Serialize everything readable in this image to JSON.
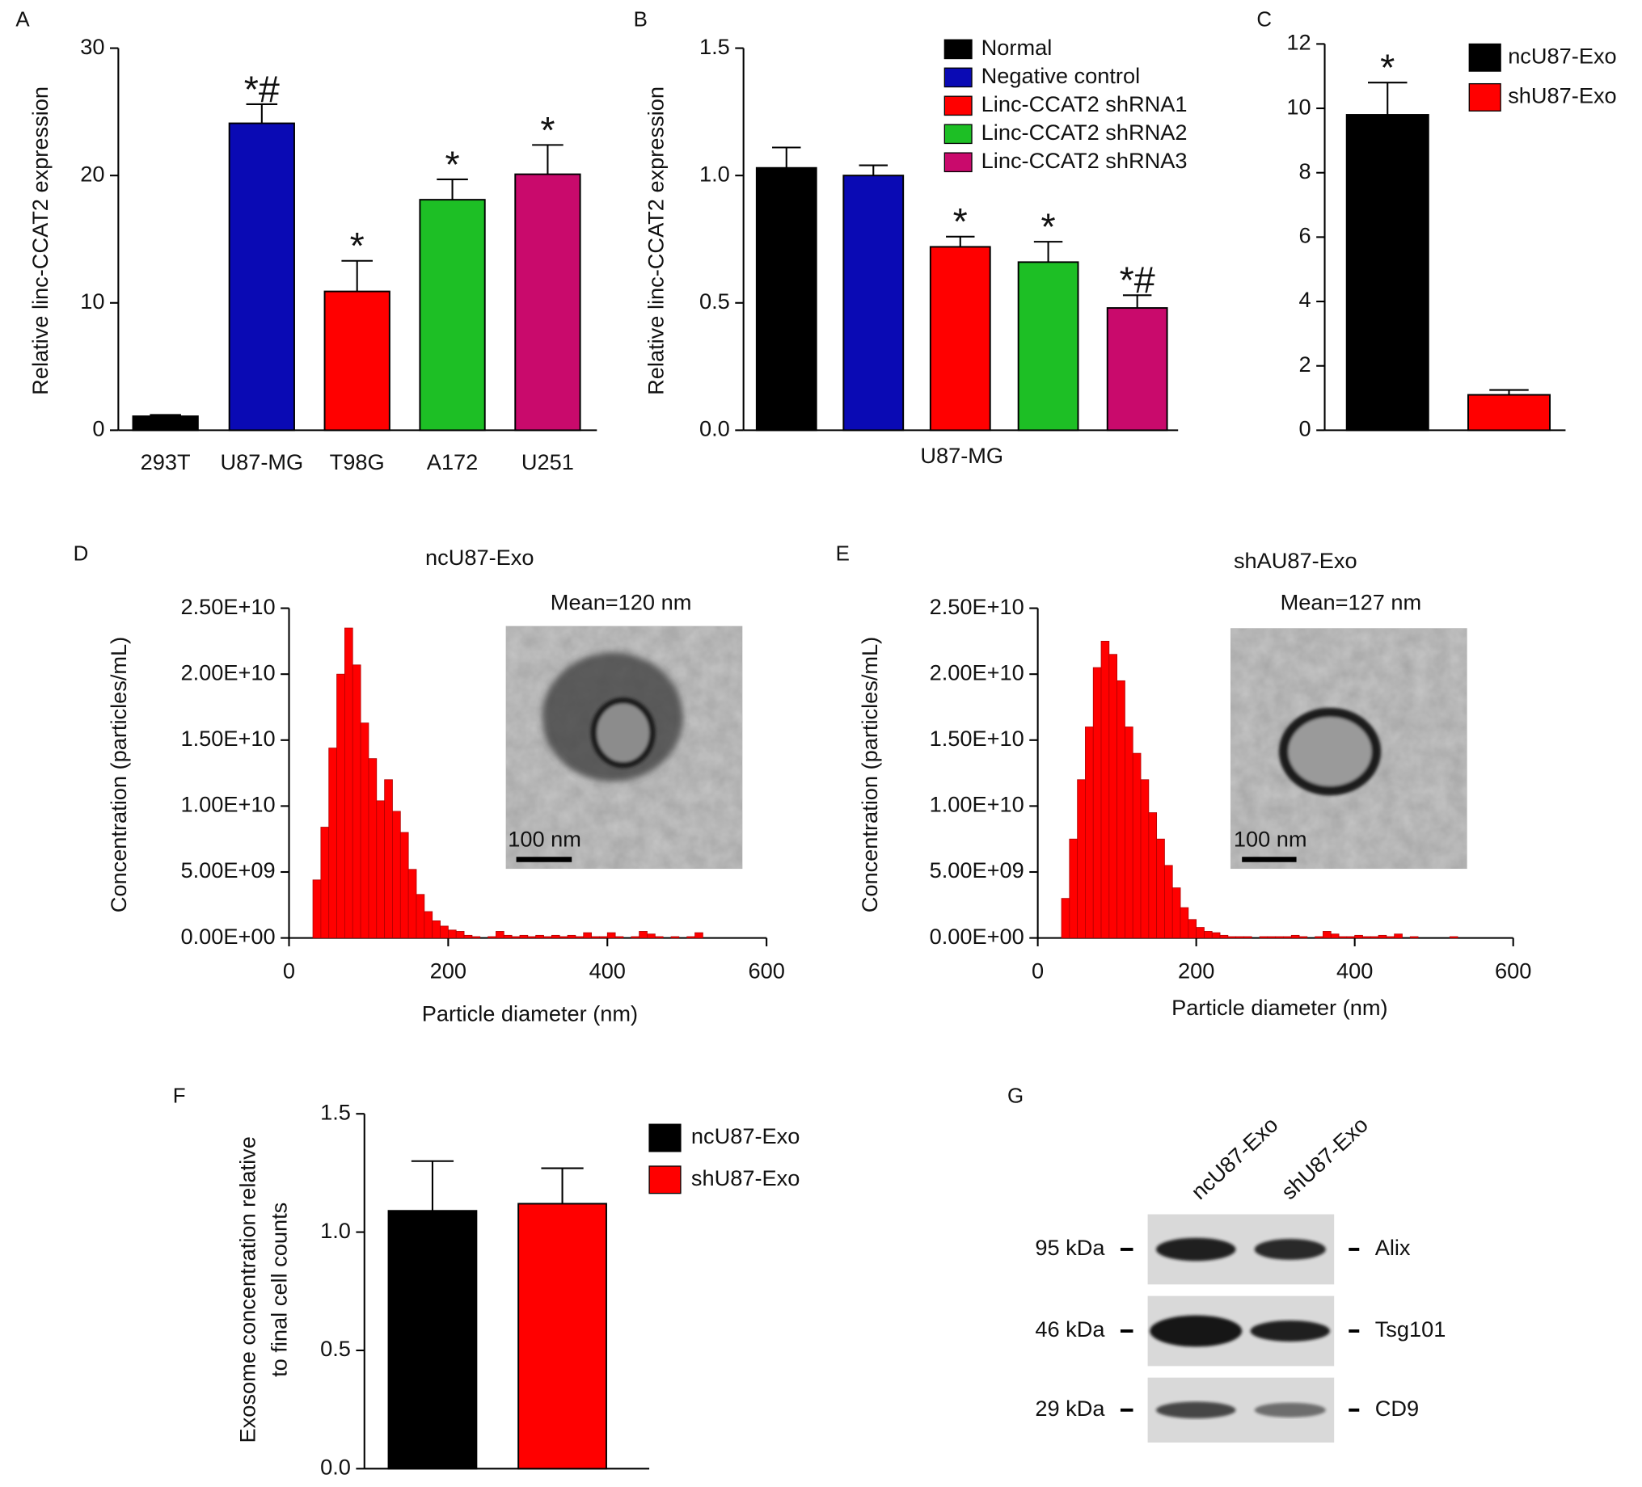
{
  "chart_data": [
    {
      "type": "bar",
      "panel": "A",
      "ylabel": "Relative linc-CCAT2 expression",
      "categories": [
        "293T",
        "U87-MG",
        "T98G",
        "A172",
        "U251"
      ],
      "values": [
        1.1,
        24.1,
        10.9,
        18.1,
        20.1
      ],
      "errors": [
        0.1,
        1.5,
        2.4,
        1.6,
        2.3
      ],
      "annotations": [
        null,
        "*#",
        "*",
        "*",
        "*"
      ],
      "colors": [
        "#000000",
        "#0a0ab4",
        "#ff0000",
        "#1dbf25",
        "#c90a6c"
      ],
      "ylim": [
        0,
        30
      ],
      "yticks": [
        0,
        10,
        20,
        30
      ]
    },
    {
      "type": "bar",
      "panel": "B",
      "ylabel": "Relative linc-CCAT2 expression",
      "categories": [
        "U87-MG"
      ],
      "series": [
        {
          "name": "Normal",
          "color": "#000000",
          "values": [
            1.03
          ],
          "errors": [
            0.08
          ],
          "annotations": [
            null
          ]
        },
        {
          "name": "Negative control",
          "color": "#0a0ab4",
          "values": [
            1.0
          ],
          "errors": [
            0.04
          ],
          "annotations": [
            null
          ]
        },
        {
          "name": "Linc-CCAT2 shRNA1",
          "color": "#ff0000",
          "values": [
            0.72
          ],
          "errors": [
            0.04
          ],
          "annotations": [
            "*"
          ]
        },
        {
          "name": "Linc-CCAT2 shRNA2",
          "color": "#1dbf25",
          "values": [
            0.66
          ],
          "errors": [
            0.08
          ],
          "annotations": [
            "*"
          ]
        },
        {
          "name": "Linc-CCAT2 shRNA3",
          "color": "#c90a6c",
          "values": [
            0.48
          ],
          "errors": [
            0.05
          ],
          "annotations": [
            "*#"
          ]
        }
      ],
      "ylim": [
        0,
        1.5
      ],
      "yticks": [
        {
          "value": 0,
          "label": "0.0"
        },
        0.5,
        {
          "value": 1,
          "label": "1.0"
        },
        1.5
      ]
    },
    {
      "type": "bar",
      "panel": "C",
      "series": [
        {
          "name": "ncU87-Exo",
          "color": "#000000",
          "values": [
            9.8
          ],
          "errors": [
            1.0
          ],
          "annotations": [
            "*"
          ]
        },
        {
          "name": "shU87-Exo",
          "color": "#ff0000",
          "values": [
            1.1
          ],
          "errors": [
            0.15
          ],
          "annotations": [
            null
          ]
        }
      ],
      "ylim": [
        0,
        12
      ],
      "yticks": [
        0,
        2,
        4,
        6,
        8,
        10,
        12
      ]
    },
    {
      "type": "histogram",
      "panel": "D",
      "title": "ncU87-Exo",
      "mean_label": "Mean=120 nm",
      "scale_label": "100 nm",
      "xlabel": "Particle diameter (nm)",
      "ylabel": "Concentration (particles/mL)",
      "color": "#ff0000",
      "bins": [
        30,
        40,
        50,
        60,
        70,
        80,
        90,
        100,
        110,
        120,
        130,
        140,
        150,
        160,
        170,
        180,
        190,
        200,
        210,
        220,
        230,
        240,
        250,
        260,
        270,
        280,
        290,
        300,
        310,
        320,
        330,
        340,
        350,
        360,
        370,
        380,
        390,
        400,
        410,
        420,
        430,
        440,
        450,
        460,
        470,
        480,
        490,
        500,
        510,
        520,
        530
      ],
      "values": [
        4400000000.0,
        8400000000.0,
        14400000000.0,
        20000000000.0,
        23500000000.0,
        20700000000.0,
        16300000000.0,
        13600000000.0,
        10400000000.0,
        12000000000.0,
        9600000000.0,
        8000000000.0,
        5200000000.0,
        3300000000.0,
        2000000000.0,
        1300000000.0,
        900000000.0,
        600000000.0,
        500000000.0,
        200000000.0,
        100000000.0,
        0,
        100000000.0,
        500000000.0,
        200000000.0,
        100000000.0,
        200000000.0,
        100000000.0,
        200000000.0,
        100000000.0,
        200000000.0,
        100000000.0,
        200000000.0,
        100000000.0,
        400000000.0,
        100000000.0,
        100000000.0,
        400000000.0,
        100000000.0,
        0,
        100000000.0,
        500000000.0,
        300000000.0,
        100000000.0,
        0,
        100000000.0,
        0,
        100000000.0,
        400000000.0,
        0
      ],
      "xlim": [
        0,
        600
      ],
      "xticks": [
        0,
        200,
        400,
        600
      ],
      "ylim": [
        0,
        25000000000.0
      ],
      "yticks": [
        {
          "value": 0,
          "label": "0.00E+00"
        },
        {
          "value": 5000000000.0,
          "label": "5.00E+09"
        },
        {
          "value": 10000000000.0,
          "label": "1.00E+10"
        },
        {
          "value": 15000000000.0,
          "label": "1.50E+10"
        },
        {
          "value": 20000000000.0,
          "label": "2.00E+10"
        },
        {
          "value": 25000000000.0,
          "label": "2.50E+10"
        }
      ]
    },
    {
      "type": "histogram",
      "panel": "E",
      "title": "shAU87-Exo",
      "mean_label": "Mean=127 nm",
      "scale_label": "100 nm",
      "xlabel": "Particle diameter (nm)",
      "ylabel": "Concentration (particles/mL)",
      "color": "#ff0000",
      "bins": [
        30,
        40,
        50,
        60,
        70,
        80,
        90,
        100,
        110,
        120,
        130,
        140,
        150,
        160,
        170,
        180,
        190,
        200,
        210,
        220,
        230,
        240,
        250,
        260,
        270,
        280,
        290,
        300,
        310,
        320,
        330,
        340,
        350,
        360,
        370,
        380,
        390,
        400,
        410,
        420,
        430,
        440,
        450,
        460,
        470,
        480,
        490,
        500,
        510,
        520,
        530
      ],
      "values": [
        3000000000.0,
        7500000000.0,
        12000000000.0,
        16000000000.0,
        20500000000.0,
        22500000000.0,
        21500000000.0,
        19500000000.0,
        16000000000.0,
        14000000000.0,
        12000000000.0,
        9500000000.0,
        7500000000.0,
        5500000000.0,
        3800000000.0,
        2300000000.0,
        1400000000.0,
        800000000.0,
        500000000.0,
        400000000.0,
        200000000.0,
        100000000.0,
        100000000.0,
        100000000.0,
        0,
        100000000.0,
        100000000.0,
        100000000.0,
        100000000.0,
        200000000.0,
        100000000.0,
        0,
        100000000.0,
        500000000.0,
        300000000.0,
        100000000.0,
        100000000.0,
        200000000.0,
        100000000.0,
        100000000.0,
        200000000.0,
        100000000.0,
        300000000.0,
        0,
        100000000.0,
        0,
        0,
        0,
        0,
        100000000.0
      ],
      "xlim": [
        0,
        600
      ],
      "xticks": [
        0,
        200,
        400,
        600
      ],
      "ylim": [
        0,
        25000000000.0
      ],
      "yticks": [
        {
          "value": 0,
          "label": "0.00E+00"
        },
        {
          "value": 5000000000.0,
          "label": "5.00E+09"
        },
        {
          "value": 10000000000.0,
          "label": "1.00E+10"
        },
        {
          "value": 15000000000.0,
          "label": "1.50E+10"
        },
        {
          "value": 20000000000.0,
          "label": "2.00E+10"
        },
        {
          "value": 25000000000.0,
          "label": "2.50E+10"
        }
      ]
    },
    {
      "type": "bar",
      "panel": "F",
      "ylabel": [
        "Exosome concentration relative",
        "to final cell counts"
      ],
      "series": [
        {
          "name": "ncU87-Exo",
          "color": "#000000",
          "values": [
            1.09
          ],
          "errors": [
            0.21
          ]
        },
        {
          "name": "shU87-Exo",
          "color": "#ff0000",
          "values": [
            1.12
          ],
          "errors": [
            0.15
          ]
        }
      ],
      "ylim": [
        0,
        1.5
      ],
      "yticks": [
        {
          "value": 0,
          "label": "0.0"
        },
        0.5,
        {
          "value": 1,
          "label": "1.0"
        },
        1.5
      ]
    }
  ],
  "blot": {
    "panel": "G",
    "lanes": [
      "ncU87-Exo",
      "shU87-Exo"
    ],
    "rows": [
      {
        "marker": "95 kDa",
        "protein": "Alix"
      },
      {
        "marker": "46 kDa",
        "protein": "Tsg101"
      },
      {
        "marker": "29 kDa",
        "protein": "CD9"
      }
    ]
  }
}
